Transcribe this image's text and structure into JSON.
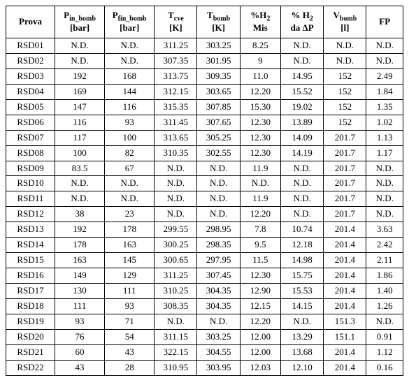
{
  "table": {
    "headers": [
      {
        "main": "Prova",
        "sub": ""
      },
      {
        "main": "P",
        "subscript": "in_bomb",
        "sub": "[bar]"
      },
      {
        "main": "P",
        "subscript": "fin_bomb",
        "sub": "[bar]"
      },
      {
        "main": "T",
        "subscript": "cve",
        "sub": "[K]"
      },
      {
        "main": "T",
        "subscript": "bomb",
        "sub": "[K]"
      },
      {
        "main": "%H",
        "subscript": "2",
        "sub": "Mis"
      },
      {
        "main": "% H",
        "subscript": "2",
        "sub": "da ΔP"
      },
      {
        "main": "V",
        "subscript": "bomb",
        "sub": "[l]"
      },
      {
        "main": "FP",
        "sub": ""
      }
    ],
    "rows": [
      [
        "RSD01",
        "N.D.",
        "N.D.",
        "311.25",
        "303.25",
        "8.25",
        "N.D.",
        "N.D.",
        "N.D."
      ],
      [
        "RSD02",
        "N.D.",
        "N.D.",
        "307.35",
        "301.95",
        "9",
        "N.D.",
        "N.D.",
        "N.D."
      ],
      [
        "RSD03",
        "192",
        "168",
        "313.75",
        "309.35",
        "11.0",
        "14.95",
        "152",
        "2.49"
      ],
      [
        "RSD04",
        "169",
        "144",
        "312.15",
        "303.65",
        "12.20",
        "15.52",
        "152",
        "1.84"
      ],
      [
        "RSD05",
        "147",
        "116",
        "315.35",
        "307.85",
        "15.30",
        "19.02",
        "152",
        "1.35"
      ],
      [
        "RSD06",
        "116",
        "93",
        "311.45",
        "307.65",
        "12.30",
        "13.89",
        "152",
        "1.02"
      ],
      [
        "RSD07",
        "117",
        "100",
        "313.65",
        "305.25",
        "12.30",
        "14.09",
        "201.7",
        "1.13"
      ],
      [
        "RSD08",
        "100",
        "82",
        "310.35",
        "302.55",
        "12.30",
        "14.19",
        "201.7",
        "1.17"
      ],
      [
        "RSD09",
        "83.5",
        "67",
        "N.D.",
        "N.D.",
        "11.9",
        "N.D.",
        "201.7",
        "N.D."
      ],
      [
        "RSD10",
        "N.D.",
        "N.D.",
        "N.D.",
        "N.D.",
        "N.D.",
        "N.D.",
        "201.7",
        "N.D."
      ],
      [
        "RSD11",
        "N.D.",
        "N.D.",
        "N.D.",
        "N.D.",
        "11.9",
        "N.D.",
        "201.7",
        "N.D."
      ],
      [
        "RSD12",
        "38",
        "23",
        "N.D.",
        "N.D.",
        "12.20",
        "N.D.",
        "201.7",
        "N.D."
      ],
      [
        "RSD13",
        "192",
        "178",
        "299.55",
        "298.95",
        "7.8",
        "10.74",
        "201.4",
        "3.63"
      ],
      [
        "RSD14",
        "178",
        "163",
        "300.25",
        "298.35",
        "9.5",
        "12.18",
        "201.4",
        "2.42"
      ],
      [
        "RSD15",
        "163",
        "145",
        "300.65",
        "297.95",
        "11.5",
        "14.98",
        "201.4",
        "2.11"
      ],
      [
        "RSD16",
        "149",
        "129",
        "311.25",
        "307.45",
        "12.30",
        "15.75",
        "201.4",
        "1.86"
      ],
      [
        "RSD17",
        "130",
        "111",
        "310.25",
        "304.35",
        "12.90",
        "15.53",
        "201.4",
        "1.40"
      ],
      [
        "RSD18",
        "111",
        "93",
        "308.35",
        "304.35",
        "12.15",
        "14.15",
        "201.4",
        "1.26"
      ],
      [
        "RSD19",
        "93",
        "71",
        "N.D.",
        "N.D.",
        "12.20",
        "N.D.",
        "151.3",
        "N.D."
      ],
      [
        "RSD20",
        "76",
        "54",
        "311.15",
        "303.25",
        "12.00",
        "13.29",
        "151.1",
        "0.91"
      ],
      [
        "RSD21",
        "60",
        "43",
        "322.15",
        "304.55",
        "12.00",
        "13.68",
        "201.4",
        "1.12"
      ],
      [
        "RSD22",
        "43",
        "28",
        "310.95",
        "303.95",
        "12.03",
        "12.10",
        "201.4",
        "0.16"
      ]
    ]
  }
}
